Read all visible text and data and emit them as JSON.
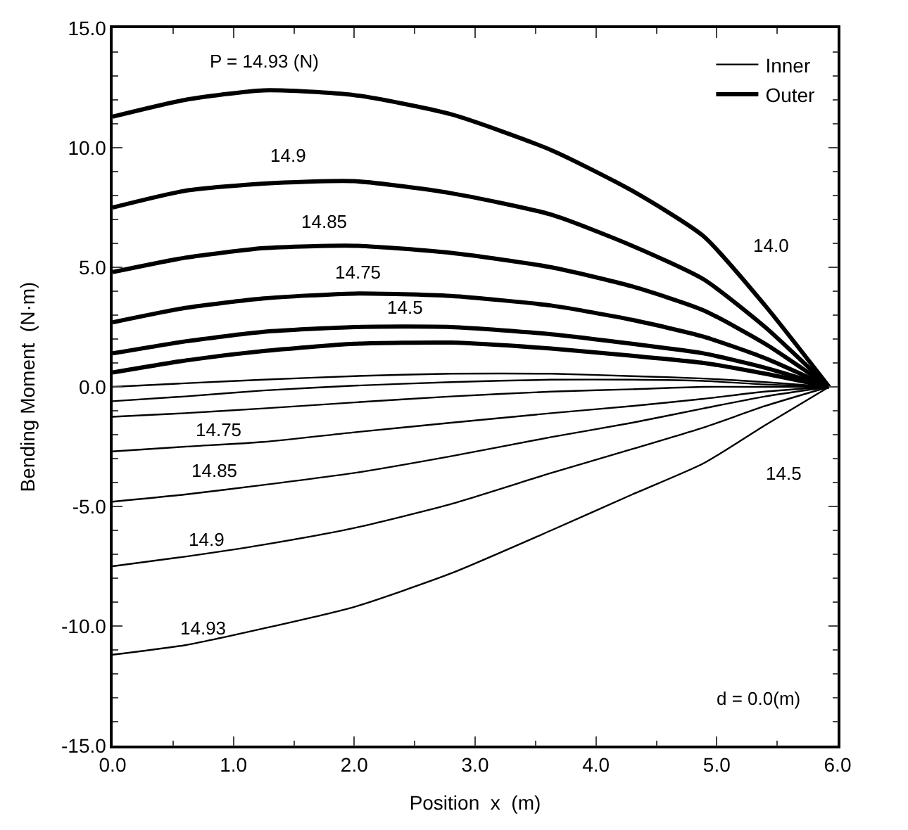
{
  "chart_data": {
    "type": "line",
    "xlabel": "Position  x  (m)",
    "ylabel": "Bending Moment  (N·m)",
    "x": [
      0,
      0.6,
      1.25,
      2.0,
      2.8,
      3.63,
      4.3,
      4.89,
      5.4,
      5.93
    ],
    "series": [
      {
        "name": "Inner",
        "color": "#000000",
        "values": [
          -11.2,
          -10.8,
          -10.1,
          -9.2,
          -7.8,
          -6.0,
          -4.5,
          -3.2,
          -1.6,
          0
        ]
      },
      {
        "color": "#000000",
        "values": [
          -7.5,
          -7.1,
          -6.6,
          -5.9,
          -4.9,
          -3.6,
          -2.6,
          -1.7,
          -0.8,
          0
        ]
      },
      {
        "color": "#000000",
        "values": [
          -4.8,
          -4.5,
          -4.1,
          -3.6,
          -2.9,
          -2.1,
          -1.5,
          -0.9,
          -0.4,
          0
        ]
      },
      {
        "color": "#000000",
        "values": [
          -2.7,
          -2.5,
          -2.3,
          -1.9,
          -1.5,
          -1.1,
          -0.8,
          -0.5,
          -0.2,
          0
        ]
      },
      {
        "color": "#000000",
        "values": [
          -1.25,
          -1.1,
          -0.9,
          -0.65,
          -0.4,
          -0.2,
          -0.1,
          0,
          0,
          0
        ]
      },
      {
        "color": "#000000",
        "values": [
          -0.6,
          -0.4,
          -0.15,
          0.05,
          0.2,
          0.3,
          0.3,
          0.25,
          0.1,
          0
        ]
      },
      {
        "color": "#000000",
        "values": [
          0,
          0.15,
          0.3,
          0.45,
          0.55,
          0.55,
          0.45,
          0.35,
          0.2,
          0
        ]
      },
      {
        "name": "Outer",
        "color": "#000000",
        "values": [
          11.3,
          12.0,
          12.4,
          12.2,
          11.4,
          9.9,
          8.2,
          6.3,
          3.4,
          0
        ]
      },
      {
        "color": "#000000",
        "values": [
          7.5,
          8.2,
          8.5,
          8.6,
          8.1,
          7.2,
          5.9,
          4.5,
          2.5,
          0
        ]
      },
      {
        "color": "#000000",
        "values": [
          4.8,
          5.4,
          5.8,
          5.9,
          5.6,
          5.0,
          4.2,
          3.2,
          1.8,
          0
        ]
      },
      {
        "color": "#000000",
        "values": [
          2.7,
          3.3,
          3.7,
          3.9,
          3.8,
          3.4,
          2.8,
          2.1,
          1.2,
          0
        ]
      },
      {
        "color": "#000000",
        "values": [
          1.4,
          1.9,
          2.3,
          2.5,
          2.5,
          2.2,
          1.8,
          1.4,
          0.8,
          0
        ]
      },
      {
        "color": "#000000",
        "values": [
          0.6,
          1.1,
          1.5,
          1.8,
          1.85,
          1.6,
          1.3,
          1.0,
          0.55,
          0
        ]
      }
    ],
    "annotations": [
      "P = 14.93 (N)",
      "14.9",
      "14.85",
      "14.75",
      "14.5",
      "14.0",
      "14.75",
      "14.85",
      "14.9",
      "14.93",
      "14.5",
      "d = 0.0(m)"
    ],
    "xlim": [
      0,
      6
    ],
    "ylim": [
      -15,
      15
    ],
    "xticks": [
      {
        "value": 0,
        "label": "0.0"
      },
      {
        "value": 1,
        "label": "1.0"
      },
      {
        "value": 2,
        "label": "2.0"
      },
      {
        "value": 3,
        "label": "3.0"
      },
      {
        "value": 4,
        "label": "4.0"
      },
      {
        "value": 5,
        "label": "5.0"
      },
      {
        "value": 6,
        "label": "6.0"
      }
    ],
    "yticks": [
      {
        "value": -15,
        "label": "-15.0"
      },
      {
        "value": -10,
        "label": "-10.0"
      },
      {
        "value": -5,
        "label": "-5.0"
      },
      {
        "value": 0,
        "label": "0.0"
      },
      {
        "value": 5,
        "label": "5.0"
      },
      {
        "value": 10,
        "label": "10.0"
      },
      {
        "value": 15,
        "label": "15.0"
      }
    ],
    "legend": "top right",
    "line_style": "solid",
    "marker": "none"
  }
}
